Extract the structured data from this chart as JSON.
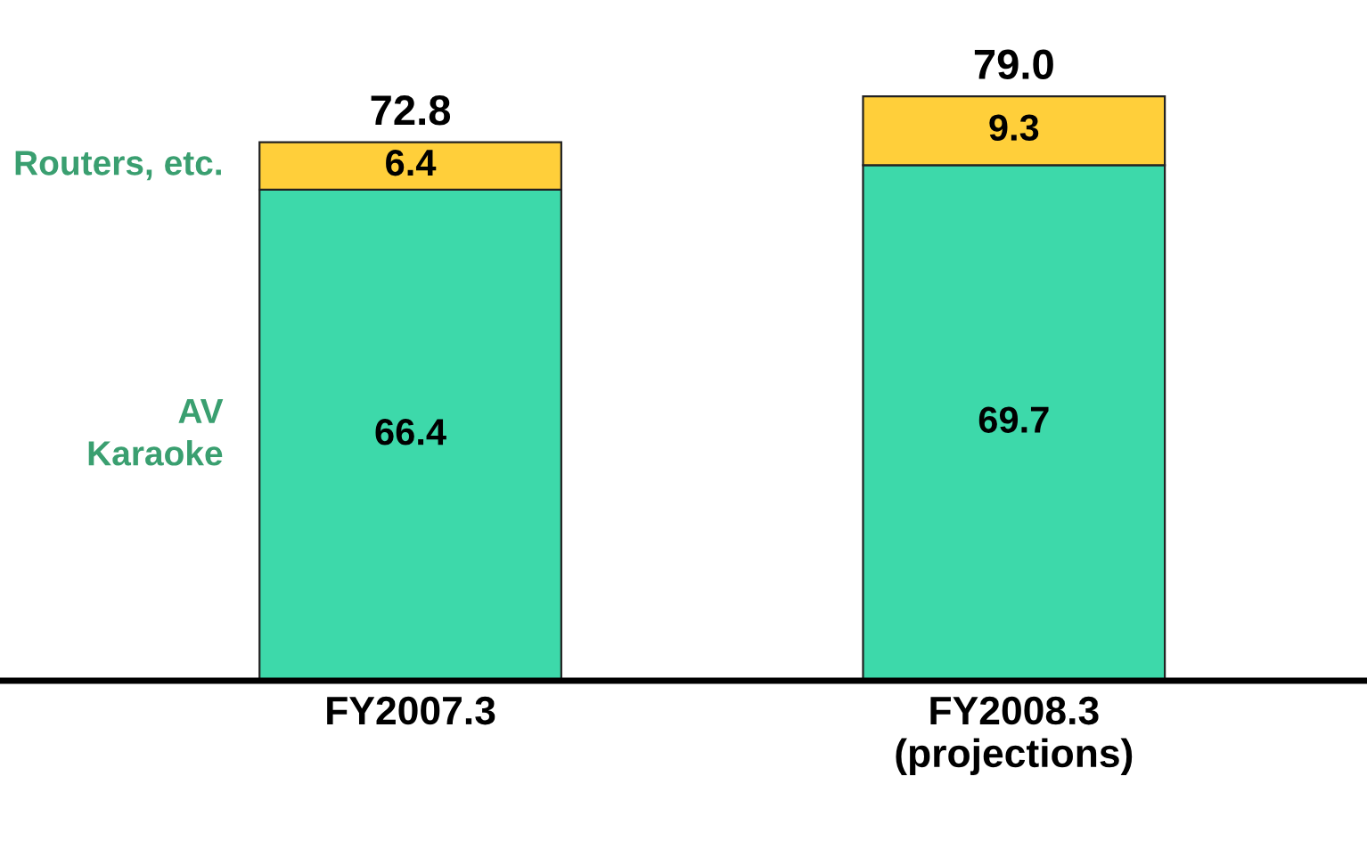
{
  "chart_data": {
    "type": "bar",
    "stacked": true,
    "categories": [
      "FY2007.3",
      "FY2008.3\n(projections)"
    ],
    "series": [
      {
        "name": "AV\nKaraoke",
        "color": "#3dd9aa",
        "values": [
          66.4,
          69.7
        ]
      },
      {
        "name": "Routers, etc.",
        "color": "#ffcf3a",
        "values": [
          6.4,
          9.3
        ]
      }
    ],
    "data_labels": true,
    "totals": [
      "72.8",
      "79.0"
    ],
    "legend": false,
    "grid": false
  }
}
